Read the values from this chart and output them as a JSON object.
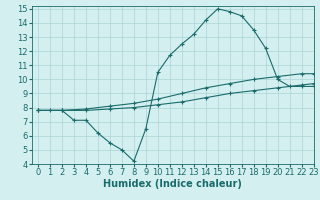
{
  "line1_x": [
    0,
    1,
    2,
    3,
    4,
    5,
    6,
    7,
    8,
    9,
    10,
    11,
    12,
    13,
    14,
    15,
    16,
    17,
    18,
    19,
    20,
    21,
    22,
    23
  ],
  "line1_y": [
    7.8,
    7.8,
    7.8,
    7.1,
    7.1,
    6.2,
    5.5,
    5.0,
    4.2,
    6.5,
    10.5,
    11.7,
    12.5,
    13.2,
    14.2,
    15.0,
    14.8,
    14.5,
    13.5,
    12.2,
    10.0,
    9.5,
    9.5,
    9.5
  ],
  "line2_x": [
    0,
    2,
    4,
    6,
    8,
    10,
    12,
    14,
    16,
    18,
    20,
    22,
    23
  ],
  "line2_y": [
    7.8,
    7.8,
    7.8,
    7.9,
    8.0,
    8.2,
    8.4,
    8.7,
    9.0,
    9.2,
    9.4,
    9.6,
    9.7
  ],
  "line3_x": [
    0,
    2,
    4,
    6,
    8,
    10,
    12,
    14,
    16,
    18,
    20,
    22,
    23
  ],
  "line3_y": [
    7.8,
    7.8,
    7.9,
    8.1,
    8.3,
    8.6,
    9.0,
    9.4,
    9.7,
    10.0,
    10.2,
    10.4,
    10.4
  ],
  "xlabel": "Humidex (Indice chaleur)",
  "xlim": [
    -0.5,
    23
  ],
  "ylim": [
    4,
    15.2
  ],
  "yticks": [
    4,
    5,
    6,
    7,
    8,
    9,
    10,
    11,
    12,
    13,
    14,
    15
  ],
  "xticks": [
    0,
    1,
    2,
    3,
    4,
    5,
    6,
    7,
    8,
    9,
    10,
    11,
    12,
    13,
    14,
    15,
    16,
    17,
    18,
    19,
    20,
    21,
    22,
    23
  ],
  "line_color": "#1a6b6b",
  "bg_color": "#d4efef",
  "grid_color": "#aad4d4",
  "xlabel_fontsize": 7,
  "tick_fontsize": 6
}
